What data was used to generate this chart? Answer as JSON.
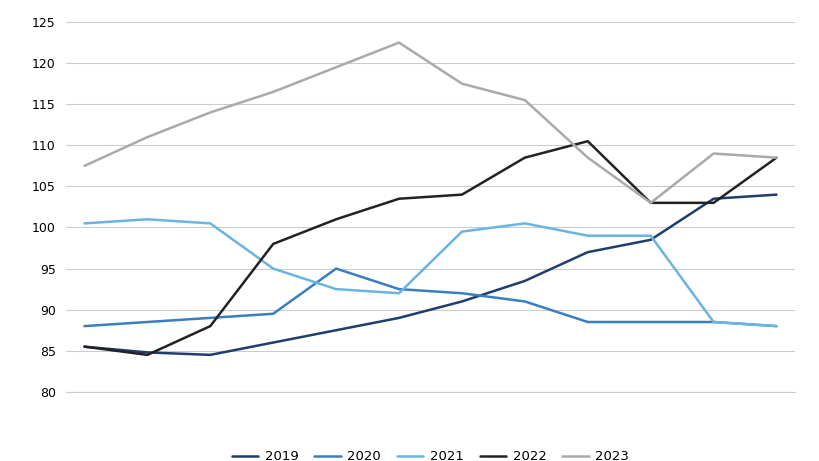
{
  "series": {
    "2019": [
      85.5,
      84.8,
      84.5,
      86.0,
      87.5,
      89.0,
      91.0,
      93.5,
      97.0,
      98.5,
      103.5,
      104.0
    ],
    "2020": [
      88.0,
      88.5,
      89.0,
      89.5,
      95.0,
      92.5,
      92.0,
      91.0,
      88.5,
      88.5,
      88.5,
      88.0
    ],
    "2021": [
      100.5,
      101.0,
      100.5,
      95.0,
      92.5,
      92.0,
      99.5,
      100.5,
      99.0,
      99.0,
      88.5,
      88.0
    ],
    "2022": [
      85.5,
      84.5,
      88.0,
      98.0,
      101.0,
      103.5,
      104.0,
      108.5,
      110.5,
      103.0,
      103.0,
      108.5
    ],
    "2023": [
      107.5,
      111.0,
      114.0,
      116.5,
      119.5,
      122.5,
      117.5,
      115.5,
      108.5,
      103.0,
      109.0,
      108.5
    ]
  },
  "colors": {
    "2019": "#1f3d6e",
    "2020": "#3a7ebf",
    "2021": "#6ab4e0",
    "2022": "#222222",
    "2023": "#aaaaaa"
  },
  "ylim": [
    80,
    126
  ],
  "yticks": [
    80,
    85,
    90,
    95,
    100,
    105,
    110,
    115,
    120,
    125
  ],
  "n_points": 12,
  "legend_order": [
    "2019",
    "2020",
    "2021",
    "2022",
    "2023"
  ],
  "background_color": "#ffffff",
  "grid_color": "#cccccc",
  "line_width": 1.8
}
